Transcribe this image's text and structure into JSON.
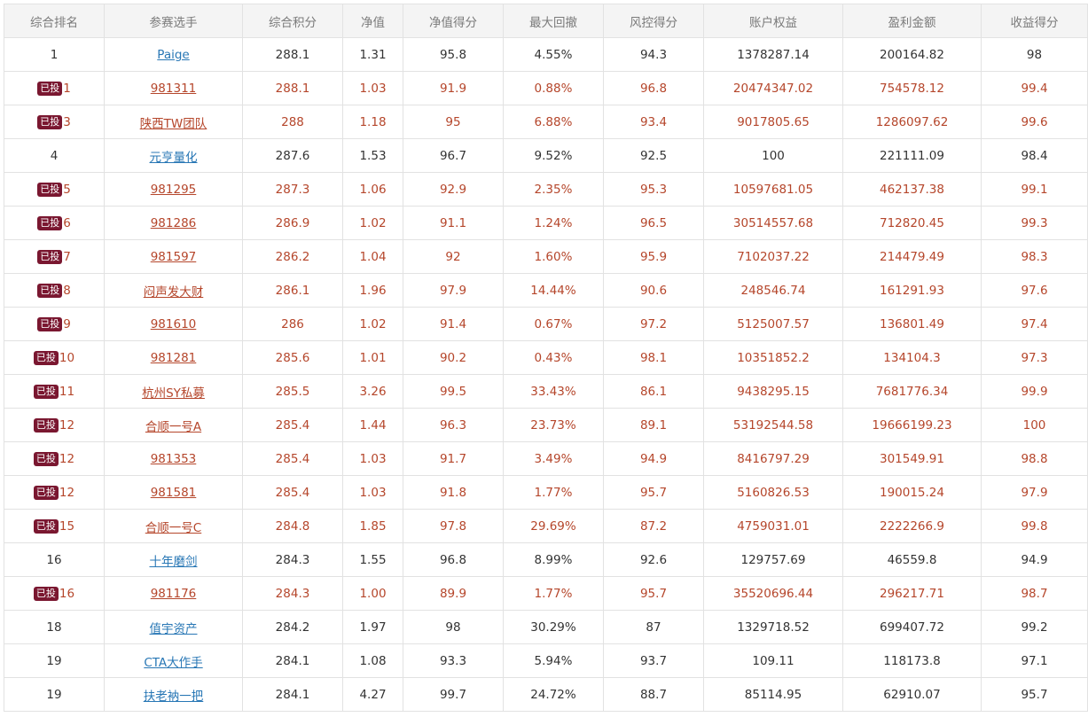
{
  "columns": [
    "综合排名",
    "参赛选手",
    "综合积分",
    "净值",
    "净值得分",
    "最大回撤",
    "风控得分",
    "账户权益",
    "盈利金额",
    "收益得分"
  ],
  "badge_label": "已投",
  "colors": {
    "header_bg": "#f4f4f4",
    "header_text": "#7a7a7a",
    "normal_text": "#333333",
    "invested_text": "#b5462b",
    "link": "#2877b5",
    "badge_bg": "#7a1730",
    "border": "#e2e2e2"
  },
  "rows": [
    {
      "rank": "1",
      "invested": false,
      "name": "Paige",
      "score": "288.1",
      "nav": "1.31",
      "nav_score": "95.8",
      "max_drawdown": "4.55%",
      "risk_score": "94.3",
      "equity": "1378287.14",
      "profit": "200164.82",
      "return_score": "98"
    },
    {
      "rank": "1",
      "invested": true,
      "name": "981311",
      "score": "288.1",
      "nav": "1.03",
      "nav_score": "91.9",
      "max_drawdown": "0.88%",
      "risk_score": "96.8",
      "equity": "20474347.02",
      "profit": "754578.12",
      "return_score": "99.4"
    },
    {
      "rank": "3",
      "invested": true,
      "name": "陕西TW团队",
      "score": "288",
      "nav": "1.18",
      "nav_score": "95",
      "max_drawdown": "6.88%",
      "risk_score": "93.4",
      "equity": "9017805.65",
      "profit": "1286097.62",
      "return_score": "99.6"
    },
    {
      "rank": "4",
      "invested": false,
      "name": "元亨量化",
      "score": "287.6",
      "nav": "1.53",
      "nav_score": "96.7",
      "max_drawdown": "9.52%",
      "risk_score": "92.5",
      "equity": "100",
      "profit": "221111.09",
      "return_score": "98.4"
    },
    {
      "rank": "5",
      "invested": true,
      "name": "981295",
      "score": "287.3",
      "nav": "1.06",
      "nav_score": "92.9",
      "max_drawdown": "2.35%",
      "risk_score": "95.3",
      "equity": "10597681.05",
      "profit": "462137.38",
      "return_score": "99.1"
    },
    {
      "rank": "6",
      "invested": true,
      "name": "981286",
      "score": "286.9",
      "nav": "1.02",
      "nav_score": "91.1",
      "max_drawdown": "1.24%",
      "risk_score": "96.5",
      "equity": "30514557.68",
      "profit": "712820.45",
      "return_score": "99.3"
    },
    {
      "rank": "7",
      "invested": true,
      "name": "981597",
      "score": "286.2",
      "nav": "1.04",
      "nav_score": "92",
      "max_drawdown": "1.60%",
      "risk_score": "95.9",
      "equity": "7102037.22",
      "profit": "214479.49",
      "return_score": "98.3"
    },
    {
      "rank": "8",
      "invested": true,
      "name": "闷声发大财",
      "score": "286.1",
      "nav": "1.96",
      "nav_score": "97.9",
      "max_drawdown": "14.44%",
      "risk_score": "90.6",
      "equity": "248546.74",
      "profit": "161291.93",
      "return_score": "97.6"
    },
    {
      "rank": "9",
      "invested": true,
      "name": "981610",
      "score": "286",
      "nav": "1.02",
      "nav_score": "91.4",
      "max_drawdown": "0.67%",
      "risk_score": "97.2",
      "equity": "5125007.57",
      "profit": "136801.49",
      "return_score": "97.4"
    },
    {
      "rank": "10",
      "invested": true,
      "name": "981281",
      "score": "285.6",
      "nav": "1.01",
      "nav_score": "90.2",
      "max_drawdown": "0.43%",
      "risk_score": "98.1",
      "equity": "10351852.2",
      "profit": "134104.3",
      "return_score": "97.3"
    },
    {
      "rank": "11",
      "invested": true,
      "name": "杭州SY私募",
      "score": "285.5",
      "nav": "3.26",
      "nav_score": "99.5",
      "max_drawdown": "33.43%",
      "risk_score": "86.1",
      "equity": "9438295.15",
      "profit": "7681776.34",
      "return_score": "99.9"
    },
    {
      "rank": "12",
      "invested": true,
      "name": "合顺一号A",
      "score": "285.4",
      "nav": "1.44",
      "nav_score": "96.3",
      "max_drawdown": "23.73%",
      "risk_score": "89.1",
      "equity": "53192544.58",
      "profit": "19666199.23",
      "return_score": "100"
    },
    {
      "rank": "12",
      "invested": true,
      "name": "981353",
      "score": "285.4",
      "nav": "1.03",
      "nav_score": "91.7",
      "max_drawdown": "3.49%",
      "risk_score": "94.9",
      "equity": "8416797.29",
      "profit": "301549.91",
      "return_score": "98.8"
    },
    {
      "rank": "12",
      "invested": true,
      "name": "981581",
      "score": "285.4",
      "nav": "1.03",
      "nav_score": "91.8",
      "max_drawdown": "1.77%",
      "risk_score": "95.7",
      "equity": "5160826.53",
      "profit": "190015.24",
      "return_score": "97.9"
    },
    {
      "rank": "15",
      "invested": true,
      "name": "合顺一号C",
      "score": "284.8",
      "nav": "1.85",
      "nav_score": "97.8",
      "max_drawdown": "29.69%",
      "risk_score": "87.2",
      "equity": "4759031.01",
      "profit": "2222266.9",
      "return_score": "99.8"
    },
    {
      "rank": "16",
      "invested": false,
      "name": "十年磨剑",
      "score": "284.3",
      "nav": "1.55",
      "nav_score": "96.8",
      "max_drawdown": "8.99%",
      "risk_score": "92.6",
      "equity": "129757.69",
      "profit": "46559.8",
      "return_score": "94.9"
    },
    {
      "rank": "16",
      "invested": true,
      "name": "981176",
      "score": "284.3",
      "nav": "1.00",
      "nav_score": "89.9",
      "max_drawdown": "1.77%",
      "risk_score": "95.7",
      "equity": "35520696.44",
      "profit": "296217.71",
      "return_score": "98.7"
    },
    {
      "rank": "18",
      "invested": false,
      "name": "值宇资产",
      "score": "284.2",
      "nav": "1.97",
      "nav_score": "98",
      "max_drawdown": "30.29%",
      "risk_score": "87",
      "equity": "1329718.52",
      "profit": "699407.72",
      "return_score": "99.2"
    },
    {
      "rank": "19",
      "invested": false,
      "name": "CTA大作手",
      "score": "284.1",
      "nav": "1.08",
      "nav_score": "93.3",
      "max_drawdown": "5.94%",
      "risk_score": "93.7",
      "equity": "109.11",
      "profit": "118173.8",
      "return_score": "97.1"
    },
    {
      "rank": "19",
      "invested": false,
      "name": "扶老衲一把",
      "score": "284.1",
      "nav": "4.27",
      "nav_score": "99.7",
      "max_drawdown": "24.72%",
      "risk_score": "88.7",
      "equity": "85114.95",
      "profit": "62910.07",
      "return_score": "95.7"
    }
  ]
}
